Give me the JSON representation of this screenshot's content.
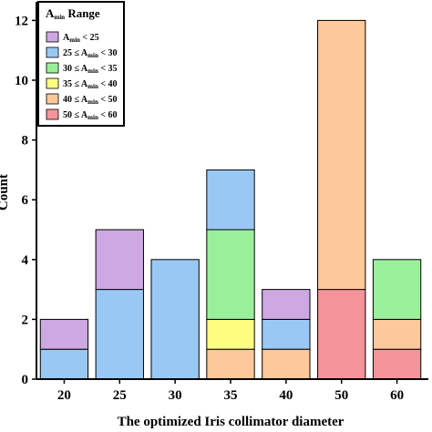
{
  "chart_data": {
    "type": "bar",
    "stacked": true,
    "xlabel": "The optimized Iris collimator diameter",
    "ylabel": "Count",
    "ylim": [
      0,
      12.5
    ],
    "yticks": [
      0,
      2,
      4,
      6,
      8,
      10,
      12
    ],
    "grid": false,
    "legend_placement": "top-left",
    "legend_title": {
      "main": "A",
      "sub": "min",
      "rest": " Range"
    },
    "categories": [
      "20",
      "25",
      "30",
      "35",
      "40",
      "50",
      "60"
    ],
    "series": [
      {
        "name": "50 ≤ Amin < 60",
        "label": {
          "pre": "50 ≤ A",
          "sub": "min",
          "post": " < 60"
        },
        "color": "#f4949a",
        "values": [
          0,
          0,
          0,
          0,
          0,
          3,
          1
        ]
      },
      {
        "name": "40 ≤ Amin < 50",
        "label": {
          "pre": "40 ≤ A",
          "sub": "min",
          "post": " < 50"
        },
        "color": "#fdc89a",
        "values": [
          0,
          0,
          0,
          1,
          1,
          9,
          1
        ]
      },
      {
        "name": "35 ≤ Amin < 40",
        "label": {
          "pre": "35 ≤ A",
          "sub": "min",
          "post": " < 40"
        },
        "color": "#fdfd80",
        "values": [
          0,
          0,
          0,
          1,
          0,
          0,
          0
        ]
      },
      {
        "name": "30 ≤ Amin < 35",
        "label": {
          "pre": "30 ≤ A",
          "sub": "min",
          "post": " < 35"
        },
        "color": "#9af09a",
        "values": [
          0,
          0,
          0,
          3,
          0,
          0,
          2
        ]
      },
      {
        "name": "25 ≤ Amin < 30",
        "label": {
          "pre": "25 ≤ A",
          "sub": "min",
          "post": " < 30"
        },
        "color": "#9ac8f4",
        "values": [
          1,
          3,
          4,
          2,
          1,
          0,
          0
        ]
      },
      {
        "name": "Amin < 25",
        "label": {
          "pre": "A",
          "sub": "min",
          "post": " < 25"
        },
        "color": "#cda8e2",
        "values": [
          1,
          2,
          0,
          0,
          1,
          0,
          0
        ]
      }
    ]
  }
}
